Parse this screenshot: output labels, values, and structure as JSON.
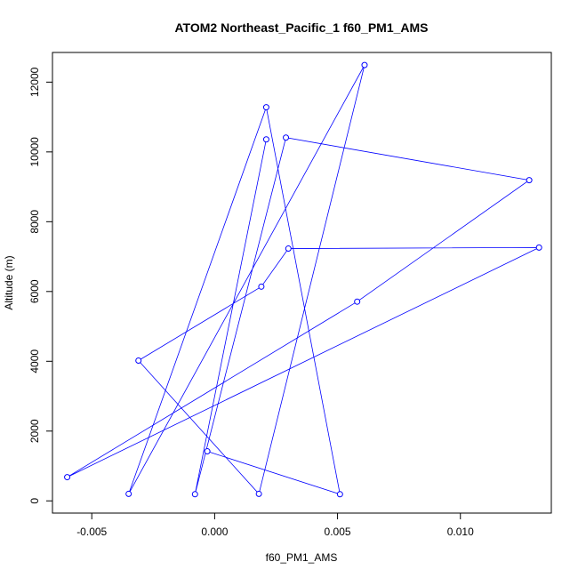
{
  "chart_data": {
    "type": "line",
    "title": "ATOM2 Northeast_Pacific_1 f60_PM1_AMS",
    "xlabel": "f60_PM1_AMS",
    "ylabel": "Altitude (m)",
    "xlim": [
      -0.0066,
      0.0137
    ],
    "ylim": [
      -350,
      12850
    ],
    "xticks": [
      -0.005,
      0.0,
      0.005,
      0.01
    ],
    "xtick_labels": [
      "-0.005",
      "0.000",
      "0.005",
      "0.010"
    ],
    "yticks": [
      0,
      2000,
      4000,
      6000,
      8000,
      10000,
      12000
    ],
    "ytick_labels": [
      "0",
      "2000",
      "4000",
      "6000",
      "8000",
      "10000",
      "12000"
    ],
    "grid": false,
    "series_color": "#0000ff",
    "series": [
      {
        "x": [
          -0.0003,
          0.0051,
          0.0021,
          -0.0035,
          0.0061,
          0.0018,
          -0.0031,
          0.0019,
          0.003,
          0.0132,
          -0.006,
          0.0058,
          0.0128,
          0.0029,
          -0.0008,
          0.0021
        ],
        "y": [
          1420,
          190,
          11280,
          200,
          12490,
          200,
          4020,
          6140,
          7230,
          7260,
          680,
          5710,
          9190,
          10410,
          190,
          10360
        ]
      }
    ]
  }
}
